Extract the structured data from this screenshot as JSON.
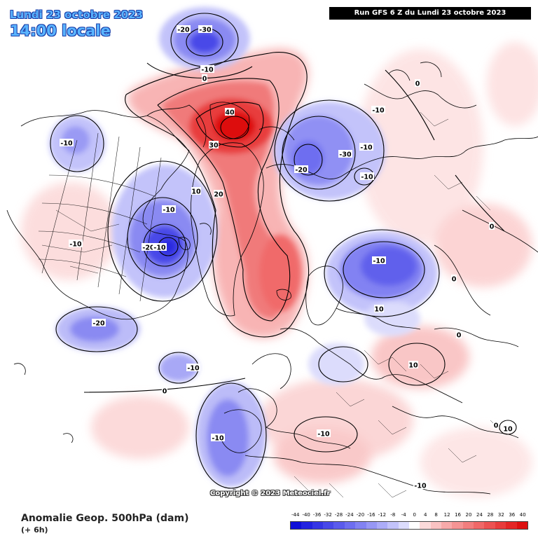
{
  "header": {
    "date": "Lundi 23 octobre 2023",
    "local_time": "14:00 locale",
    "run_info": "Run GFS 6 Z du Lundi 23 octobre 2023"
  },
  "copyright": "Copyright © 2023 Meteociel.fr",
  "footer": {
    "title": "Anomalie Geop. 500hPa (dam)",
    "subtitle": "(+ 6h)"
  },
  "legend": {
    "labels": [
      "-44",
      "-40",
      "-36",
      "-32",
      "-28",
      "-24",
      "-20",
      "-16",
      "-12",
      "-8",
      "-4",
      "0",
      "4",
      "8",
      "12",
      "16",
      "20",
      "24",
      "28",
      "32",
      "36",
      "40"
    ],
    "colors": [
      "#1010d8",
      "#2222e0",
      "#3535e4",
      "#4848e8",
      "#5b5bec",
      "#6e6ef0",
      "#8282f2",
      "#9797f5",
      "#acacf8",
      "#c3c3fa",
      "#dcdcfc",
      "#ffffff",
      "#fcdada",
      "#fac2c2",
      "#f8aaaa",
      "#f59494",
      "#f27e7e",
      "#f06868",
      "#ec5252",
      "#e83c3c",
      "#e42626",
      "#dd1010"
    ]
  },
  "contour_labels": [
    "-30",
    "-20",
    "-10",
    "0",
    "-10",
    "40",
    "30",
    "20",
    "10",
    "-10",
    "-10",
    "-20",
    "-10",
    "-10",
    "-30",
    "-20",
    "-10",
    "10",
    "-20",
    "-10",
    "-10",
    "-10",
    "0",
    "0",
    "-10",
    "10",
    "-10",
    "0",
    "10",
    "0",
    "-10",
    "0",
    "0"
  ],
  "colors": {
    "positive_anomaly": "#ee3b3b",
    "negative_anomaly": "#4848e8",
    "header_text": "#5ab4ff",
    "header_outline": "#1a3ea8"
  }
}
